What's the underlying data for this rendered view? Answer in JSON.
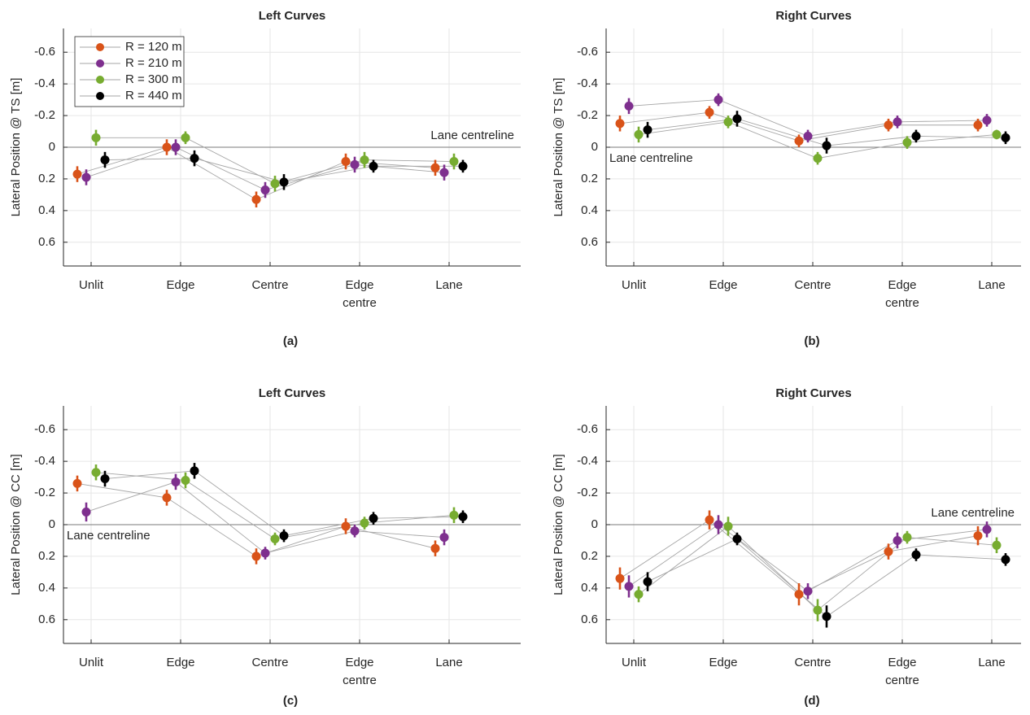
{
  "chart_data": [
    {
      "type": "errorbar",
      "title": "Left Curves",
      "y_label": "Lateral Position @ TS [m]",
      "panel_label": "(a)",
      "categories": [
        "Unlit",
        "Edge",
        "Centre",
        "Edge centre",
        "Lane"
      ],
      "ylim": [
        -0.75,
        0.75
      ],
      "y_direction": "reverse",
      "yticks": [
        -0.6,
        -0.4,
        -0.2,
        0,
        0.2,
        0.4,
        0.6
      ],
      "grid": true,
      "legend": "upper left",
      "annotation": {
        "text": "Lane centreline",
        "y": 0
      },
      "series": [
        {
          "name": "R = 120 m",
          "color": "#d95319",
          "values": [
            0.17,
            0.0,
            0.33,
            0.09,
            0.13
          ],
          "errors": [
            0.05,
            0.05,
            0.05,
            0.05,
            0.05
          ]
        },
        {
          "name": "R = 210 m",
          "color": "#7e2f8e",
          "values": [
            0.19,
            0.0,
            0.27,
            0.11,
            0.16
          ],
          "errors": [
            0.05,
            0.05,
            0.05,
            0.05,
            0.05
          ]
        },
        {
          "name": "R = 300 m",
          "color": "#77ac30",
          "values": [
            -0.06,
            -0.06,
            0.23,
            0.08,
            0.09
          ],
          "errors": [
            0.05,
            0.04,
            0.05,
            0.05,
            0.05
          ]
        },
        {
          "name": "R = 440 m",
          "color": "#000000",
          "values": [
            0.08,
            0.07,
            0.22,
            0.12,
            0.12
          ],
          "errors": [
            0.05,
            0.05,
            0.05,
            0.04,
            0.04
          ]
        }
      ]
    },
    {
      "type": "errorbar",
      "title": "Right Curves",
      "y_label": "Lateral Position @ TS [m]",
      "panel_label": "(b)",
      "categories": [
        "Unlit",
        "Edge",
        "Centre",
        "Edge centre",
        "Lane"
      ],
      "ylim": [
        -0.75,
        0.75
      ],
      "y_direction": "reverse",
      "yticks": [
        -0.6,
        -0.4,
        -0.2,
        0,
        0.2,
        0.4,
        0.6
      ],
      "grid": true,
      "annotation": {
        "text": "Lane centreline",
        "y": 0
      },
      "series": [
        {
          "color": "#d95319",
          "values": [
            -0.15,
            -0.22,
            -0.04,
            -0.14,
            -0.14
          ],
          "errors": [
            0.05,
            0.04,
            0.04,
            0.04,
            0.04
          ]
        },
        {
          "color": "#7e2f8e",
          "values": [
            -0.26,
            -0.3,
            -0.07,
            -0.16,
            -0.17
          ],
          "errors": [
            0.05,
            0.04,
            0.04,
            0.04,
            0.04
          ]
        },
        {
          "color": "#77ac30",
          "values": [
            -0.08,
            -0.16,
            0.07,
            -0.03,
            -0.08
          ],
          "errors": [
            0.05,
            0.04,
            0.04,
            0.04,
            0.03
          ]
        },
        {
          "color": "#000000",
          "values": [
            -0.11,
            -0.18,
            -0.01,
            -0.07,
            -0.06
          ],
          "errors": [
            0.05,
            0.05,
            0.05,
            0.04,
            0.04
          ]
        }
      ]
    },
    {
      "type": "errorbar",
      "title": "Left Curves",
      "y_label": "Lateral Position @ CC [m]",
      "panel_label": "(c)",
      "categories": [
        "Unlit",
        "Edge",
        "Centre",
        "Edge centre",
        "Lane"
      ],
      "ylim": [
        -0.75,
        0.75
      ],
      "y_direction": "reverse",
      "yticks": [
        -0.6,
        -0.4,
        -0.2,
        0,
        0.2,
        0.4,
        0.6
      ],
      "grid": true,
      "annotation": {
        "text": "Lane centreline",
        "y": 0
      },
      "series": [
        {
          "color": "#d95319",
          "values": [
            -0.26,
            -0.17,
            0.2,
            0.01,
            0.15
          ],
          "errors": [
            0.05,
            0.05,
            0.05,
            0.05,
            0.05
          ]
        },
        {
          "color": "#7e2f8e",
          "values": [
            -0.08,
            -0.27,
            0.18,
            0.04,
            0.08
          ],
          "errors": [
            0.06,
            0.05,
            0.04,
            0.04,
            0.05
          ]
        },
        {
          "color": "#77ac30",
          "values": [
            -0.33,
            -0.28,
            0.09,
            -0.01,
            -0.06
          ],
          "errors": [
            0.05,
            0.05,
            0.04,
            0.04,
            0.05
          ]
        },
        {
          "color": "#000000",
          "values": [
            -0.29,
            -0.34,
            0.07,
            -0.04,
            -0.05
          ],
          "errors": [
            0.05,
            0.05,
            0.04,
            0.04,
            0.04
          ]
        }
      ]
    },
    {
      "type": "errorbar",
      "title": "Right Curves",
      "y_label": "Lateral Position @ CC [m]",
      "panel_label": "(d)",
      "categories": [
        "Unlit",
        "Edge",
        "Centre",
        "Edge centre",
        "Lane"
      ],
      "ylim": [
        -0.75,
        0.75
      ],
      "y_direction": "reverse",
      "yticks": [
        -0.6,
        -0.4,
        -0.2,
        0,
        0.2,
        0.4,
        0.6
      ],
      "grid": true,
      "annotation": {
        "text": "Lane centreline",
        "y": 0
      },
      "series": [
        {
          "color": "#d95319",
          "values": [
            0.34,
            -0.03,
            0.44,
            0.17,
            0.07
          ],
          "errors": [
            0.07,
            0.06,
            0.07,
            0.05,
            0.06
          ]
        },
        {
          "color": "#7e2f8e",
          "values": [
            0.39,
            0.0,
            0.42,
            0.1,
            0.03
          ],
          "errors": [
            0.07,
            0.06,
            0.05,
            0.05,
            0.05
          ]
        },
        {
          "color": "#77ac30",
          "values": [
            0.44,
            0.01,
            0.54,
            0.08,
            0.13
          ],
          "errors": [
            0.05,
            0.06,
            0.07,
            0.04,
            0.05
          ]
        },
        {
          "color": "#000000",
          "values": [
            0.36,
            0.09,
            0.58,
            0.19,
            0.22
          ],
          "errors": [
            0.06,
            0.04,
            0.07,
            0.04,
            0.04
          ]
        }
      ]
    }
  ]
}
